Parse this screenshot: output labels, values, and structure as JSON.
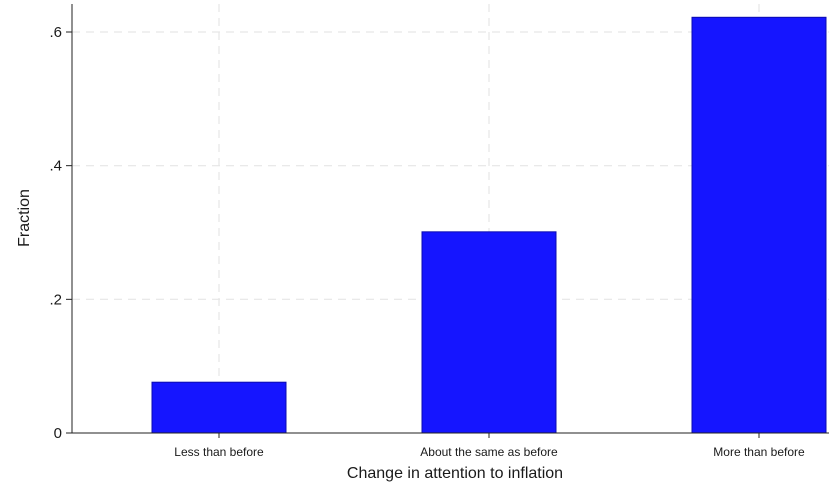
{
  "chart_data": {
    "type": "bar",
    "categories": [
      "Less than before",
      "About the same as before",
      "More than before"
    ],
    "values": [
      0.076,
      0.301,
      0.622
    ],
    "xlabel": "Change in attention to inflation",
    "ylabel": "Fraction",
    "ylim": [
      0,
      0.64
    ],
    "yticks": [
      0,
      0.2,
      0.4,
      0.6
    ],
    "ytick_labels": [
      "0",
      ".2",
      ".4",
      ".6"
    ],
    "grid": true,
    "bar_color": "#1515ff",
    "bar_edge_color": "#0b0bb0"
  }
}
